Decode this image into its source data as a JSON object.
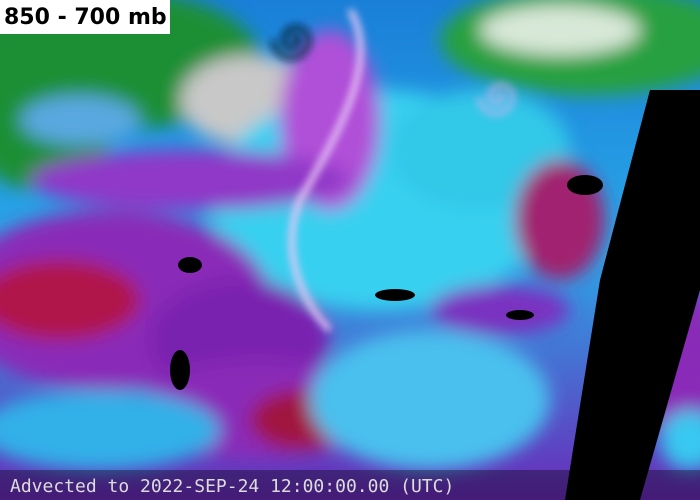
{
  "title": "850 - 700 mb",
  "footer": "Advected to 2022-SEP-24 12:00:00.00 (UTC)"
}
